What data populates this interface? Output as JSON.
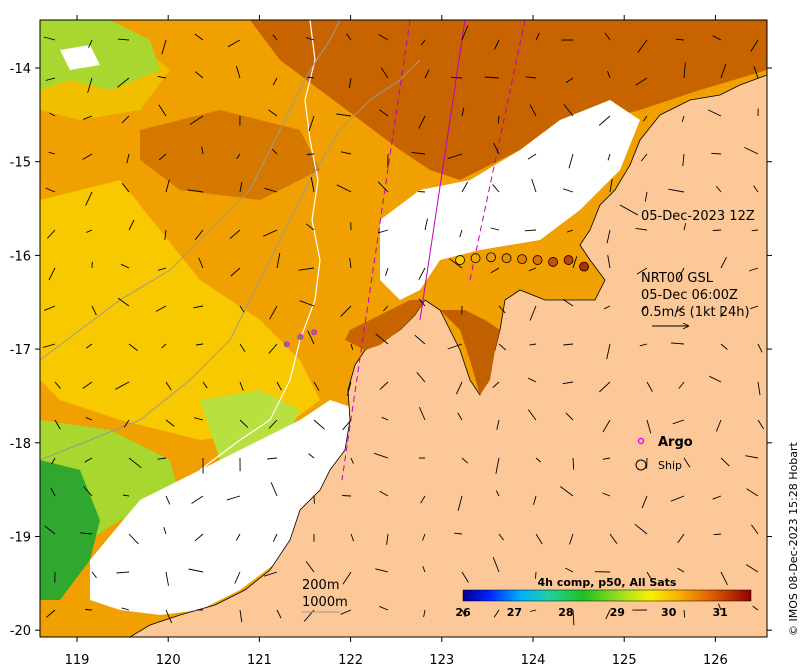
{
  "map": {
    "lon_ticks": [
      "119",
      "120",
      "121",
      "122",
      "123",
      "124",
      "125",
      "126"
    ],
    "lat_ticks": [
      "-14",
      "-15",
      "-16",
      "-17",
      "-18",
      "-19",
      "-20"
    ],
    "colors": {
      "land": "#fcc898",
      "cloud": "#ffffff",
      "sst_hot": "#c86400",
      "sst_warm": "#f0a000",
      "sst_mid": "#f8d000",
      "sst_cool": "#a0d830",
      "sst_cold": "#30b030",
      "argo": "#ff00ff",
      "ship_track": "#c000c0"
    }
  },
  "annotations": {
    "ship_time": "05-Dec-2023 12Z",
    "current_product": "NRT00 GSL",
    "current_time": "05-Dec 06:00Z",
    "current_scale": "0.5m/s (1kt 24h)",
    "contour_200": "200m",
    "contour_1000": "1000m"
  },
  "legend": {
    "argo_label": "Argo",
    "ship_label": "Ship"
  },
  "colorbar": {
    "title": "4h comp, p50, All Sats",
    "ticks": [
      "26",
      "27",
      "28",
      "29",
      "30",
      "31"
    ],
    "min": 26,
    "max": 31.6
  },
  "credit": "© IMOS 08-Dec-2023 15:28 Hobart",
  "ship_positions": [
    {
      "lon": 123.2,
      "lat": -16.05,
      "sst": 30.0
    },
    {
      "lon": 123.37,
      "lat": -16.03,
      "sst": 30.2
    },
    {
      "lon": 123.54,
      "lat": -16.02,
      "sst": 30.3
    },
    {
      "lon": 123.71,
      "lat": -16.03,
      "sst": 30.4
    },
    {
      "lon": 123.88,
      "lat": -16.04,
      "sst": 30.5
    },
    {
      "lon": 124.05,
      "lat": -16.05,
      "sst": 30.6
    },
    {
      "lon": 124.22,
      "lat": -16.07,
      "sst": 30.9
    },
    {
      "lon": 124.39,
      "lat": -16.05,
      "sst": 31.0
    },
    {
      "lon": 124.56,
      "lat": -16.12,
      "sst": 31.2
    }
  ],
  "argo_floats": [
    {
      "lon": 121.3,
      "lat": -16.95
    },
    {
      "lon": 121.45,
      "lat": -16.87
    },
    {
      "lon": 121.6,
      "lat": -16.82
    }
  ]
}
